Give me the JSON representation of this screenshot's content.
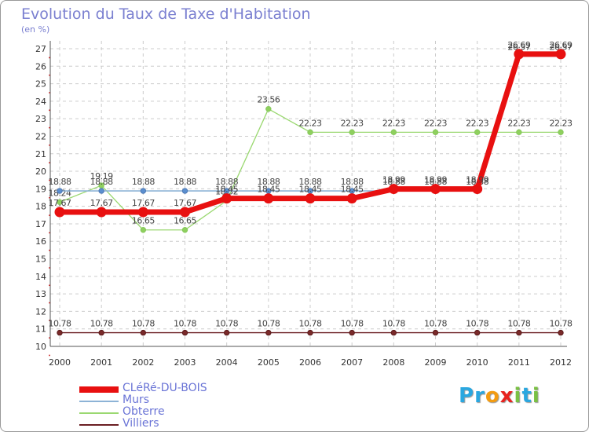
{
  "title": "Evolution du Taux de Taxe d'Habitation",
  "subtitle": "(en %)",
  "chart_data": {
    "type": "line",
    "title": "Evolution du Taux de Taxe d'Habitation",
    "ylabel": "(en %)",
    "x": [
      "2000",
      "2001",
      "2002",
      "2003",
      "2004",
      "2005",
      "2006",
      "2007",
      "2008",
      "2009",
      "2010",
      "2011",
      "2012"
    ],
    "ylim": [
      10,
      27
    ],
    "yticks": [
      10,
      11,
      12,
      13,
      14,
      15,
      16,
      17,
      18,
      19,
      20,
      21,
      22,
      23,
      24,
      25,
      26,
      27
    ],
    "grid": true,
    "series": [
      {
        "name": "Villiers",
        "color": "#6b1f23",
        "values": [
          10.78,
          10.78,
          10.78,
          10.78,
          10.78,
          10.78,
          10.78,
          10.78,
          10.78,
          10.78,
          10.78,
          10.78,
          10.78
        ],
        "labels": [
          "10.78",
          "10.78",
          "10.78",
          "10.78",
          "10.78",
          "10.78",
          "10.78",
          "10.78",
          "10.78",
          "10.78",
          "10.78",
          "10.78",
          "10.78"
        ]
      },
      {
        "name": "Obterre",
        "color": "#9ad870",
        "values": [
          18.24,
          19.19,
          16.65,
          16.65,
          18.32,
          23.56,
          22.23,
          22.23,
          22.23,
          22.23,
          22.23,
          22.23,
          22.23
        ],
        "labels": [
          "18.24",
          "19.19",
          "16.65",
          "16.65",
          "18.32",
          "23.56",
          "22.23",
          "22.23",
          "22.23",
          "22.23",
          "22.23",
          "22.23",
          "22.23"
        ]
      },
      {
        "name": "Murs",
        "color": "#8db3d6",
        "values": [
          18.88,
          18.88,
          18.88,
          18.88,
          18.88,
          18.88,
          18.88,
          18.88,
          18.88,
          18.88,
          18.88,
          26.57,
          26.57
        ],
        "labels": [
          "18.88",
          "18.88",
          "18.88",
          "18.88",
          "18.88",
          "18.88",
          "18.88",
          "18.88",
          "18.88",
          "18.88",
          "18.88",
          "26.57",
          "26.57"
        ]
      },
      {
        "name": "CLéRé-DU-BOIS",
        "color": "#e81010",
        "values": [
          17.67,
          17.67,
          17.67,
          17.67,
          18.45,
          18.45,
          18.45,
          18.45,
          18.99,
          18.99,
          18.99,
          26.69,
          26.69
        ],
        "labels": [
          "17.67",
          "17.67",
          "17.67",
          "17.67",
          "18.45",
          "18.45",
          "18.45",
          "18.45",
          "18.99",
          "18.99",
          "18.99",
          "26.69",
          "26.69"
        ]
      }
    ],
    "legend": [
      "CLéRé-DU-BOIS",
      "Murs",
      "Obterre",
      "Villiers"
    ],
    "legend_position": "bottom-left"
  },
  "logo": {
    "letters": [
      "P",
      "r",
      "o",
      "x",
      "i",
      "t",
      "i"
    ],
    "colors": [
      "#2aa7e0",
      "#2aa7e0",
      "#f39c12",
      "#e8231f",
      "#7ac143",
      "#2aa7e0",
      "#7ac143"
    ]
  }
}
